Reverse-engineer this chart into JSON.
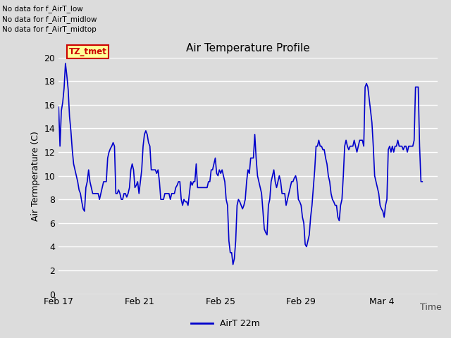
{
  "title": "Air Temperature Profile",
  "xlabel": "Time",
  "ylabel": "Air Termperature (C)",
  "legend_label": "AirT 22m",
  "legend_line_color": "#0000cc",
  "no_data_texts": [
    "No data for f_AirT_low",
    "No data for f_AirT_midlow",
    "No data for f_AirT_midtop"
  ],
  "tooltip_text": "TZ_tmet",
  "tooltip_bg": "#ffff99",
  "tooltip_border": "#cc0000",
  "tooltip_text_color": "#cc0000",
  "line_color": "#0000cc",
  "line_width": 1.2,
  "ylim": [
    0,
    20
  ],
  "yticks": [
    0,
    2,
    4,
    6,
    8,
    10,
    12,
    14,
    16,
    18,
    20
  ],
  "bg_color": "#dcdcdc",
  "plot_bg_color": "#dcdcdc",
  "grid_color": "#ffffff",
  "temperature_data": [
    15.8,
    12.5,
    15.5,
    16.2,
    17.4,
    19.5,
    18.5,
    17.3,
    15.0,
    13.8,
    12.2,
    11.0,
    10.5,
    10.0,
    9.5,
    8.8,
    8.5,
    7.8,
    7.2,
    7.0,
    9.0,
    9.5,
    10.5,
    9.5,
    9.0,
    8.5,
    8.5,
    8.5,
    8.5,
    8.5,
    8.0,
    8.5,
    9.0,
    9.5,
    9.5,
    9.5,
    11.5,
    12.0,
    12.3,
    12.5,
    12.8,
    12.5,
    8.5,
    8.5,
    8.8,
    8.5,
    8.0,
    8.0,
    8.5,
    8.5,
    8.2,
    8.5,
    9.0,
    10.5,
    11.0,
    10.5,
    9.0,
    9.2,
    9.5,
    8.5,
    9.5,
    10.5,
    12.5,
    13.5,
    13.8,
    13.5,
    12.8,
    12.5,
    10.5,
    10.5,
    10.5,
    10.5,
    10.2,
    10.5,
    9.5,
    8.0,
    8.0,
    8.0,
    8.5,
    8.5,
    8.5,
    8.5,
    8.0,
    8.5,
    8.5,
    8.5,
    9.0,
    9.2,
    9.5,
    9.5,
    8.0,
    7.5,
    8.0,
    7.8,
    7.8,
    7.5,
    8.5,
    9.5,
    9.2,
    9.5,
    9.5,
    11.0,
    9.0,
    9.0,
    9.0,
    9.0,
    9.0,
    9.0,
    9.0,
    9.0,
    9.5,
    9.5,
    10.5,
    10.5,
    11.0,
    11.5,
    10.2,
    10.0,
    10.5,
    10.2,
    10.5,
    10.0,
    9.5,
    8.0,
    7.5,
    4.5,
    3.5,
    3.5,
    2.5,
    3.0,
    4.5,
    7.5,
    8.0,
    7.8,
    7.5,
    7.2,
    7.5,
    8.0,
    9.5,
    10.5,
    10.2,
    11.5,
    11.5,
    11.5,
    13.5,
    11.5,
    10.0,
    9.5,
    9.0,
    8.5,
    7.0,
    5.5,
    5.2,
    5.0,
    7.5,
    8.0,
    9.5,
    10.0,
    10.5,
    9.5,
    9.0,
    9.5,
    10.0,
    9.5,
    8.5,
    8.5,
    8.5,
    7.5,
    8.0,
    8.5,
    9.0,
    9.5,
    9.5,
    9.8,
    10.0,
    9.5,
    8.0,
    7.8,
    7.5,
    6.5,
    6.0,
    4.2,
    4.0,
    4.5,
    5.0,
    6.5,
    7.5,
    9.0,
    10.5,
    12.5,
    12.5,
    13.0,
    12.5,
    12.5,
    12.2,
    12.2,
    11.5,
    11.0,
    10.0,
    9.5,
    8.5,
    8.0,
    7.8,
    7.5,
    7.5,
    6.5,
    6.2,
    7.5,
    8.0,
    10.0,
    12.5,
    13.0,
    12.5,
    12.2,
    12.5,
    12.5,
    12.5,
    13.0,
    12.5,
    12.0,
    12.5,
    13.0,
    13.0,
    13.0,
    12.5,
    17.5,
    17.8,
    17.5,
    16.5,
    15.5,
    14.5,
    12.5,
    10.0,
    9.5,
    9.0,
    8.5,
    7.5,
    7.2,
    7.0,
    6.5,
    7.5,
    8.0,
    12.2,
    12.5,
    12.0,
    12.5,
    12.0,
    12.5,
    12.5,
    13.0,
    12.5,
    12.5,
    12.5,
    12.2,
    12.5,
    12.5,
    12.0,
    12.5,
    12.5,
    12.5,
    12.5,
    13.0,
    17.5,
    17.5,
    17.5,
    12.5,
    9.5,
    9.5
  ]
}
